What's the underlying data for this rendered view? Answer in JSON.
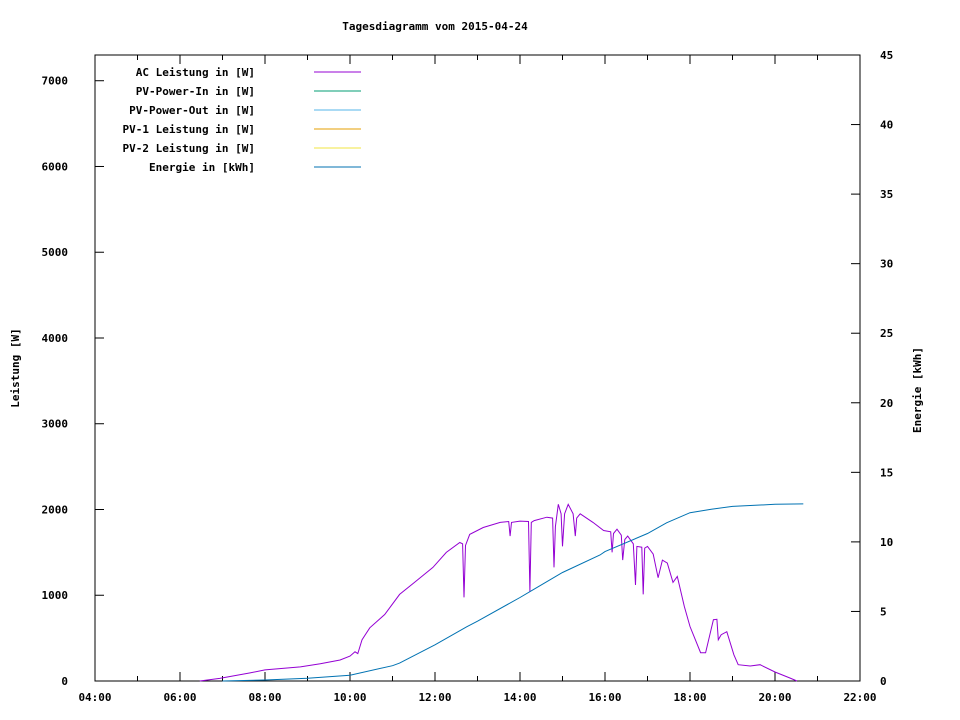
{
  "chart_data": {
    "type": "line",
    "title": "Tagesdiagramm vom 2015-04-24",
    "xlabel": "",
    "ylabel": "Leistung [W]",
    "y2label": "Energie [kWh]",
    "xlim": [
      "04:00",
      "22:00"
    ],
    "ylim": [
      0,
      7300
    ],
    "y2lim": [
      0,
      45
    ],
    "x_ticks": [
      "04:00",
      "06:00",
      "08:00",
      "10:00",
      "12:00",
      "14:00",
      "16:00",
      "18:00",
      "20:00",
      "22:00"
    ],
    "y_ticks": [
      0,
      1000,
      2000,
      3000,
      4000,
      5000,
      6000,
      7000
    ],
    "y2_ticks": [
      0,
      5,
      10,
      15,
      20,
      25,
      30,
      35,
      40,
      45
    ],
    "grid": false,
    "legend_placement": "top-left",
    "series": [
      {
        "name": "AC Leistung in [W]",
        "axis": "y",
        "color": "#9400d3",
        "points": [
          [
            "06:28",
            0
          ],
          [
            "06:56",
            30
          ],
          [
            "07:39",
            95
          ],
          [
            "08:00",
            130
          ],
          [
            "08:50",
            165
          ],
          [
            "09:18",
            200
          ],
          [
            "09:46",
            245
          ],
          [
            "10:00",
            290
          ],
          [
            "10:07",
            340
          ],
          [
            "10:11",
            320
          ],
          [
            "10:17",
            480
          ],
          [
            "10:28",
            620
          ],
          [
            "10:49",
            775
          ],
          [
            "11:10",
            1010
          ],
          [
            "11:31",
            1150
          ],
          [
            "11:57",
            1325
          ],
          [
            "12:16",
            1500
          ],
          [
            "12:35",
            1615
          ],
          [
            "12:39",
            1600
          ],
          [
            "12:41",
            975
          ],
          [
            "12:43",
            1580
          ],
          [
            "12:49",
            1710
          ],
          [
            "13:08",
            1790
          ],
          [
            "13:32",
            1850
          ],
          [
            "13:44",
            1860
          ],
          [
            "13:46",
            1690
          ],
          [
            "13:48",
            1850
          ],
          [
            "14:00",
            1865
          ],
          [
            "14:12",
            1860
          ],
          [
            "14:14",
            1040
          ],
          [
            "14:16",
            1850
          ],
          [
            "14:20",
            1870
          ],
          [
            "14:38",
            1910
          ],
          [
            "14:46",
            1900
          ],
          [
            "14:48",
            1325
          ],
          [
            "14:50",
            1800
          ],
          [
            "14:54",
            2060
          ],
          [
            "14:58",
            1950
          ],
          [
            "15:00",
            1570
          ],
          [
            "15:03",
            1950
          ],
          [
            "15:08",
            2060
          ],
          [
            "15:15",
            1950
          ],
          [
            "15:18",
            1690
          ],
          [
            "15:20",
            1900
          ],
          [
            "15:25",
            1950
          ],
          [
            "15:43",
            1850
          ],
          [
            "15:58",
            1755
          ],
          [
            "16:08",
            1740
          ],
          [
            "16:10",
            1500
          ],
          [
            "16:12",
            1720
          ],
          [
            "16:17",
            1770
          ],
          [
            "16:23",
            1700
          ],
          [
            "16:25",
            1410
          ],
          [
            "16:28",
            1650
          ],
          [
            "16:32",
            1690
          ],
          [
            "16:40",
            1600
          ],
          [
            "16:43",
            1120
          ],
          [
            "16:45",
            1570
          ],
          [
            "16:52",
            1560
          ],
          [
            "16:54",
            1010
          ],
          [
            "16:56",
            1550
          ],
          [
            "17:00",
            1570
          ],
          [
            "17:08",
            1480
          ],
          [
            "17:15",
            1205
          ],
          [
            "17:21",
            1410
          ],
          [
            "17:28",
            1375
          ],
          [
            "17:36",
            1150
          ],
          [
            "17:42",
            1220
          ],
          [
            "17:52",
            870
          ],
          [
            "18:00",
            635
          ],
          [
            "18:15",
            330
          ],
          [
            "18:22",
            330
          ],
          [
            "18:33",
            715
          ],
          [
            "18:38",
            720
          ],
          [
            "18:40",
            480
          ],
          [
            "18:44",
            540
          ],
          [
            "18:52",
            575
          ],
          [
            "19:02",
            305
          ],
          [
            "19:08",
            190
          ],
          [
            "19:25",
            175
          ],
          [
            "19:39",
            190
          ],
          [
            "20:00",
            105
          ],
          [
            "20:21",
            35
          ],
          [
            "20:31",
            0
          ]
        ]
      },
      {
        "name": "PV-Power-In in [W]",
        "axis": "y",
        "color": "#009e73",
        "points": []
      },
      {
        "name": "PV-Power-Out in [W]",
        "axis": "y",
        "color": "#56b4e9",
        "points": []
      },
      {
        "name": "PV-1 Leistung in [W]",
        "axis": "y",
        "color": "#e69f00",
        "points": []
      },
      {
        "name": "PV-2 Leistung in [W]",
        "axis": "y",
        "color": "#f0e442",
        "points": []
      },
      {
        "name": "Energie in [kWh]",
        "axis": "y2",
        "color": "#0072b2",
        "points": [
          [
            "07:00",
            0
          ],
          [
            "08:00",
            0.07
          ],
          [
            "09:00",
            0.2
          ],
          [
            "10:00",
            0.42
          ],
          [
            "11:00",
            1.1
          ],
          [
            "11:10",
            1.29
          ],
          [
            "12:00",
            2.6
          ],
          [
            "12:45",
            3.9
          ],
          [
            "13:00",
            4.3
          ],
          [
            "14:00",
            6.0
          ],
          [
            "14:18",
            6.55
          ],
          [
            "15:00",
            7.8
          ],
          [
            "15:53",
            9.06
          ],
          [
            "16:00",
            9.3
          ],
          [
            "17:00",
            10.6
          ],
          [
            "17:27",
            11.37
          ],
          [
            "18:00",
            12.1
          ],
          [
            "18:30",
            12.35
          ],
          [
            "19:00",
            12.55
          ],
          [
            "20:00",
            12.7
          ],
          [
            "20:40",
            12.73
          ]
        ]
      }
    ]
  }
}
